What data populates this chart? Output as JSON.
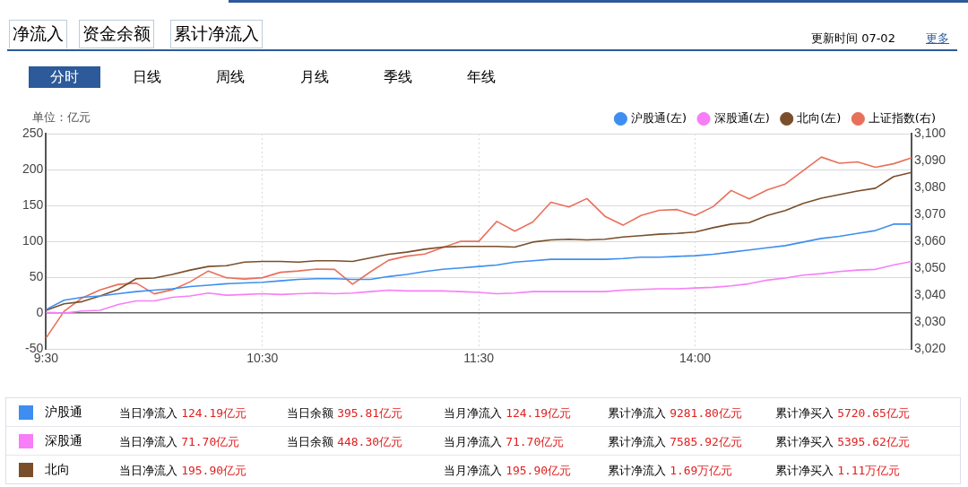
{
  "chart_data": {
    "type": "line",
    "ylabel": "单位：亿元",
    "categories": [
      "9:30",
      null,
      null,
      null,
      null,
      null,
      null,
      null,
      null,
      null,
      null,
      null,
      "10:30",
      null,
      null,
      null,
      null,
      null,
      null,
      null,
      null,
      null,
      null,
      null,
      "11:30",
      null,
      null,
      null,
      null,
      null,
      null,
      null,
      null,
      null,
      null,
      null,
      "14:00",
      null,
      null,
      null,
      null,
      null,
      null,
      null,
      null,
      null,
      null,
      null,
      null
    ],
    "ylim": [
      -50,
      250
    ],
    "yticks": [
      -50,
      0,
      50,
      100,
      150,
      200,
      250
    ],
    "y2lim": [
      3020,
      3100
    ],
    "y2ticks": [
      {
        "value": 3020,
        "label": "3,020"
      },
      {
        "value": 3030,
        "label": "3,030"
      },
      {
        "value": 3040,
        "label": "3,040"
      },
      {
        "value": 3050,
        "label": "3,050"
      },
      {
        "value": 3060,
        "label": "3,060"
      },
      {
        "value": 3070,
        "label": "3,070"
      },
      {
        "value": 3080,
        "label": "3,080"
      },
      {
        "value": 3090,
        "label": "3,090"
      },
      {
        "value": 3100,
        "label": "3,100"
      }
    ],
    "grid": true,
    "legend": "top right",
    "marker": "none",
    "line_style": "solid",
    "series": [
      {
        "name": "沪股通(左)",
        "color": "#3d8ef0",
        "values": [
          5,
          18,
          22,
          24,
          27,
          30,
          32,
          34,
          37,
          39,
          41,
          42,
          43,
          45,
          47,
          48,
          48,
          47,
          47,
          51,
          54,
          58,
          61,
          63,
          65,
          67,
          71,
          73,
          75,
          75,
          75,
          75,
          76,
          78,
          78,
          79,
          80,
          82,
          85,
          88,
          91,
          94,
          99,
          104,
          107,
          111,
          115,
          124,
          124
        ]
      },
      {
        "name": "深股通(左)",
        "color": "#f77ef7",
        "values": [
          1,
          0,
          3,
          4,
          12,
          17,
          17,
          22,
          24,
          28,
          25,
          26,
          27,
          26,
          27,
          28,
          27,
          28,
          30,
          32,
          31,
          31,
          31,
          30,
          29,
          27,
          28,
          30,
          30,
          30,
          30,
          30,
          32,
          33,
          34,
          34,
          35,
          36,
          38,
          41,
          46,
          49,
          53,
          55,
          58,
          60,
          61,
          67,
          72
        ]
      },
      {
        "name": "北向(左)",
        "color": "#7a4e2a",
        "values": [
          4,
          13,
          16,
          24,
          33,
          48,
          49,
          54,
          60,
          65,
          66,
          71,
          72,
          72,
          71,
          73,
          73,
          72,
          77,
          82,
          85,
          89,
          92,
          93,
          93,
          93,
          92,
          99,
          102,
          103,
          102,
          103,
          106,
          108,
          110,
          111,
          113,
          119,
          124,
          126,
          136,
          143,
          153,
          160,
          165,
          170,
          174,
          190,
          196
        ]
      },
      {
        "name": "上证指数(右)",
        "color": "#e8705a",
        "axis": "y2",
        "values": [
          3024.1,
          3034,
          3039,
          3042,
          3044,
          3044.5,
          3040.5,
          3042,
          3045,
          3049,
          3046.5,
          3046,
          3046.5,
          3048.5,
          3049,
          3049.7,
          3049.6,
          3044.1,
          3048.7,
          3053,
          3054.5,
          3055.3,
          3057.7,
          3060,
          3060,
          3067.4,
          3063.8,
          3067.2,
          3074.5,
          3072.8,
          3075.9,
          3069.3,
          3066,
          3069.6,
          3071.5,
          3071.8,
          3069.6,
          3072.9,
          3078.9,
          3075.8,
          3079.1,
          3081.3,
          3086.3,
          3091.3,
          3089,
          3089.5,
          3087.5,
          3088.8,
          3091
        ]
      }
    ],
    "annotations": [
      "净流入",
      "资金余额",
      "累计净流入",
      "更新时间 07-02",
      "更多",
      "分时",
      "日线",
      "周线",
      "月线",
      "季线",
      "年线",
      "沪股通",
      "当日净流入 124.19亿元",
      "当日余额 395.81亿元",
      "当月净流入 124.19亿元",
      "累计净流入 9281.80亿元",
      "累计净买入 5720.65亿元",
      "深股通",
      "当日净流入 71.70亿元",
      "当日余额 448.30亿元",
      "当月净流入 71.70亿元",
      "累计净流入 7585.92亿元",
      "累计净买入 5395.62亿元",
      "北向",
      "当日净流入 195.90亿元",
      "当月净流入 195.90亿元",
      "累计净流入 1.69万亿元",
      "累计净买入 1.11万亿元"
    ]
  }
}
